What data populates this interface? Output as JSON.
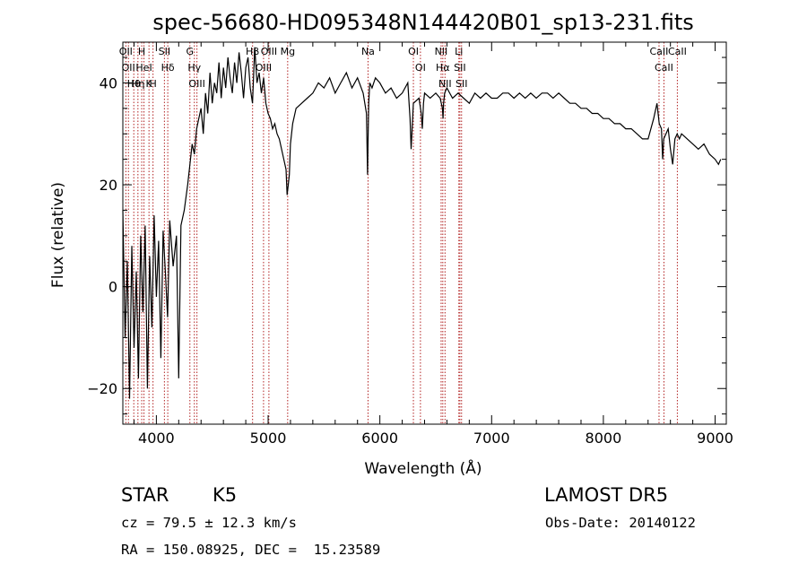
{
  "chart_data": {
    "type": "line",
    "title": "spec-56680-HD095348N144420B01_sp13-231.fits",
    "xlabel": "Wavelength (Å)",
    "ylabel": "Flux (relative)",
    "xlim": [
      3700,
      9100
    ],
    "ylim": [
      -27,
      48
    ],
    "xticks": [
      4000,
      5000,
      6000,
      7000,
      8000,
      9000
    ],
    "yticks": [
      -20,
      0,
      20,
      40
    ],
    "grid": false,
    "series": [
      {
        "x": [
          3700,
          3720,
          3740,
          3760,
          3780,
          3800,
          3820,
          3840,
          3860,
          3880,
          3900,
          3920,
          3940,
          3960,
          3980,
          4000,
          4020,
          4040,
          4060,
          4080,
          4100,
          4120,
          4150,
          4180,
          4200,
          4220,
          4250,
          4280,
          4300,
          4320,
          4340,
          4360,
          4380,
          4400,
          4420,
          4440,
          4460,
          4480,
          4500,
          4520,
          4540,
          4560,
          4580,
          4600,
          4620,
          4640,
          4660,
          4680,
          4700,
          4720,
          4740,
          4760,
          4780,
          4800,
          4820,
          4840,
          4860,
          4880,
          4900,
          4920,
          4940,
          4960,
          4980,
          5000,
          5020,
          5040,
          5060,
          5080,
          5100,
          5120,
          5140,
          5160,
          5170,
          5180,
          5190,
          5200,
          5220,
          5250,
          5300,
          5350,
          5400,
          5450,
          5500,
          5550,
          5600,
          5650,
          5700,
          5750,
          5800,
          5850,
          5880,
          5890,
          5895,
          5900,
          5910,
          5930,
          5960,
          6000,
          6050,
          6100,
          6150,
          6200,
          6250,
          6270,
          6280,
          6300,
          6350,
          6370,
          6380,
          6390,
          6400,
          6450,
          6500,
          6540,
          6560,
          6565,
          6570,
          6580,
          6600,
          6650,
          6700,
          6750,
          6800,
          6850,
          6900,
          6950,
          7000,
          7050,
          7100,
          7150,
          7200,
          7250,
          7300,
          7350,
          7400,
          7450,
          7500,
          7550,
          7600,
          7650,
          7700,
          7750,
          7800,
          7850,
          7900,
          7950,
          8000,
          8050,
          8100,
          8150,
          8200,
          8250,
          8300,
          8350,
          8400,
          8450,
          8480,
          8500,
          8520,
          8530,
          8540,
          8560,
          8580,
          8600,
          8620,
          8640,
          8660,
          8680,
          8700,
          8750,
          8800,
          8850,
          8900,
          8950,
          9000,
          9030,
          9050
        ],
        "y": [
          15,
          -10,
          5,
          -22,
          8,
          -12,
          3,
          -18,
          10,
          -5,
          12,
          -20,
          6,
          -8,
          14,
          -2,
          9,
          -14,
          11,
          3,
          -6,
          13,
          4,
          10,
          -18,
          12,
          15,
          20,
          24,
          28,
          26,
          31,
          33,
          35,
          30,
          38,
          34,
          42,
          36,
          40,
          38,
          44,
          37,
          43,
          39,
          45,
          41,
          38,
          44,
          40,
          46,
          42,
          37,
          43,
          45,
          39,
          36,
          47,
          40,
          42,
          38,
          41,
          36,
          34,
          33,
          31,
          32,
          30,
          29,
          27,
          25,
          23,
          18,
          20,
          22,
          28,
          32,
          35,
          36,
          37,
          38,
          40,
          39,
          41,
          38,
          40,
          42,
          39,
          41,
          38,
          34,
          22,
          30,
          36,
          40,
          39,
          41,
          40,
          38,
          39,
          37,
          38,
          40,
          33,
          27,
          36,
          37,
          34,
          31,
          36,
          38,
          37,
          38,
          37,
          35,
          33,
          36,
          38,
          39,
          37,
          38,
          37,
          36,
          38,
          37,
          38,
          37,
          37,
          38,
          38,
          37,
          38,
          37,
          38,
          37,
          38,
          38,
          37,
          38,
          37,
          36,
          36,
          35,
          35,
          34,
          34,
          33,
          33,
          32,
          32,
          31,
          31,
          30,
          29,
          29,
          33,
          36,
          32,
          31,
          25,
          29,
          30,
          31,
          27,
          24,
          29,
          30,
          29,
          30,
          29,
          28,
          27,
          28,
          26,
          25,
          24,
          25
        ]
      }
    ],
    "lines": [
      {
        "wl": 3727,
        "label": "OII"
      },
      {
        "wl": 3750,
        "label": "OII"
      },
      {
        "wl": 3798,
        "label": "Hθ"
      },
      {
        "wl": 3835,
        "label": "Hη"
      },
      {
        "wl": 3869,
        "label": "H"
      },
      {
        "wl": 3889,
        "label": "HeI"
      },
      {
        "wl": 3934,
        "label": "K"
      },
      {
        "wl": 3970,
        "label": "H"
      },
      {
        "wl": 4072,
        "label": "SII"
      },
      {
        "wl": 4102,
        "label": "Hδ"
      },
      {
        "wl": 4300,
        "label": "G"
      },
      {
        "wl": 4340,
        "label": "Hγ"
      },
      {
        "wl": 4363,
        "label": "OIII"
      },
      {
        "wl": 4861,
        "label": "Hβ"
      },
      {
        "wl": 4959,
        "label": "OIII"
      },
      {
        "wl": 5007,
        "label": "OIII"
      },
      {
        "wl": 5175,
        "label": "Mg"
      },
      {
        "wl": 5894,
        "label": "Na"
      },
      {
        "wl": 6300,
        "label": "OI"
      },
      {
        "wl": 6363,
        "label": "OI"
      },
      {
        "wl": 6548,
        "label": "NII"
      },
      {
        "wl": 6563,
        "label": "Hα"
      },
      {
        "wl": 6583,
        "label": "NII"
      },
      {
        "wl": 6707,
        "label": "Li"
      },
      {
        "wl": 6716,
        "label": "SII"
      },
      {
        "wl": 6731,
        "label": "SII"
      },
      {
        "wl": 8498,
        "label": "CaII"
      },
      {
        "wl": 8542,
        "label": "CaII"
      },
      {
        "wl": 8662,
        "label": "CaII"
      }
    ]
  },
  "info": {
    "object_class": "STAR",
    "subclass": "K5",
    "survey": "LAMOST DR5",
    "redshift": "cz = 79.5 ± 12.3 km/s",
    "obs_date": "Obs-Date: 20140122",
    "coords": "RA = 150.08925, DEC =  15.23589"
  }
}
